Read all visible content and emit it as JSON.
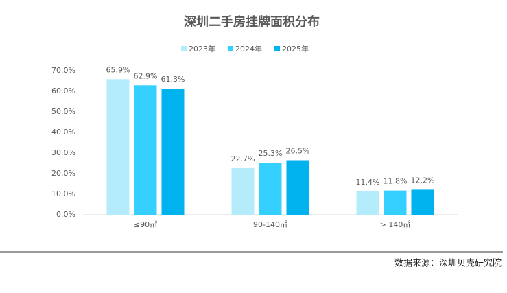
{
  "chart_data": {
    "type": "bar",
    "title": "深圳二手房挂牌面积分布",
    "categories": [
      "≤90㎡",
      "90-140㎡",
      "> 140㎡"
    ],
    "series": [
      {
        "name": "2023年",
        "color": "#b5ecfc",
        "values": [
          65.9,
          22.7,
          11.4
        ],
        "value_labels": [
          "65.9%",
          "22.7%",
          "11.4%"
        ]
      },
      {
        "name": "2024年",
        "color": "#35d0ff",
        "values": [
          62.9,
          25.3,
          11.8
        ],
        "value_labels": [
          "62.9%",
          "25.3%",
          "11.8%"
        ]
      },
      {
        "name": "2025年",
        "color": "#00b2ee",
        "values": [
          61.3,
          26.5,
          12.2
        ],
        "value_labels": [
          "61.3%",
          "26.5%",
          "12.2%"
        ]
      }
    ],
    "ylim": [
      0,
      70
    ],
    "yticks": [
      {
        "value": 0,
        "label": "0.0%"
      },
      {
        "value": 10,
        "label": "10.0%"
      },
      {
        "value": 20,
        "label": "20.0%"
      },
      {
        "value": 30,
        "label": "30.0%"
      },
      {
        "value": 40,
        "label": "40.0%"
      },
      {
        "value": 50,
        "label": "50.0%"
      },
      {
        "value": 60,
        "label": "60.0%"
      },
      {
        "value": 70,
        "label": "70.0%"
      }
    ],
    "grid": false,
    "legend": "top",
    "source": "数据来源：深圳贝壳研究院"
  }
}
